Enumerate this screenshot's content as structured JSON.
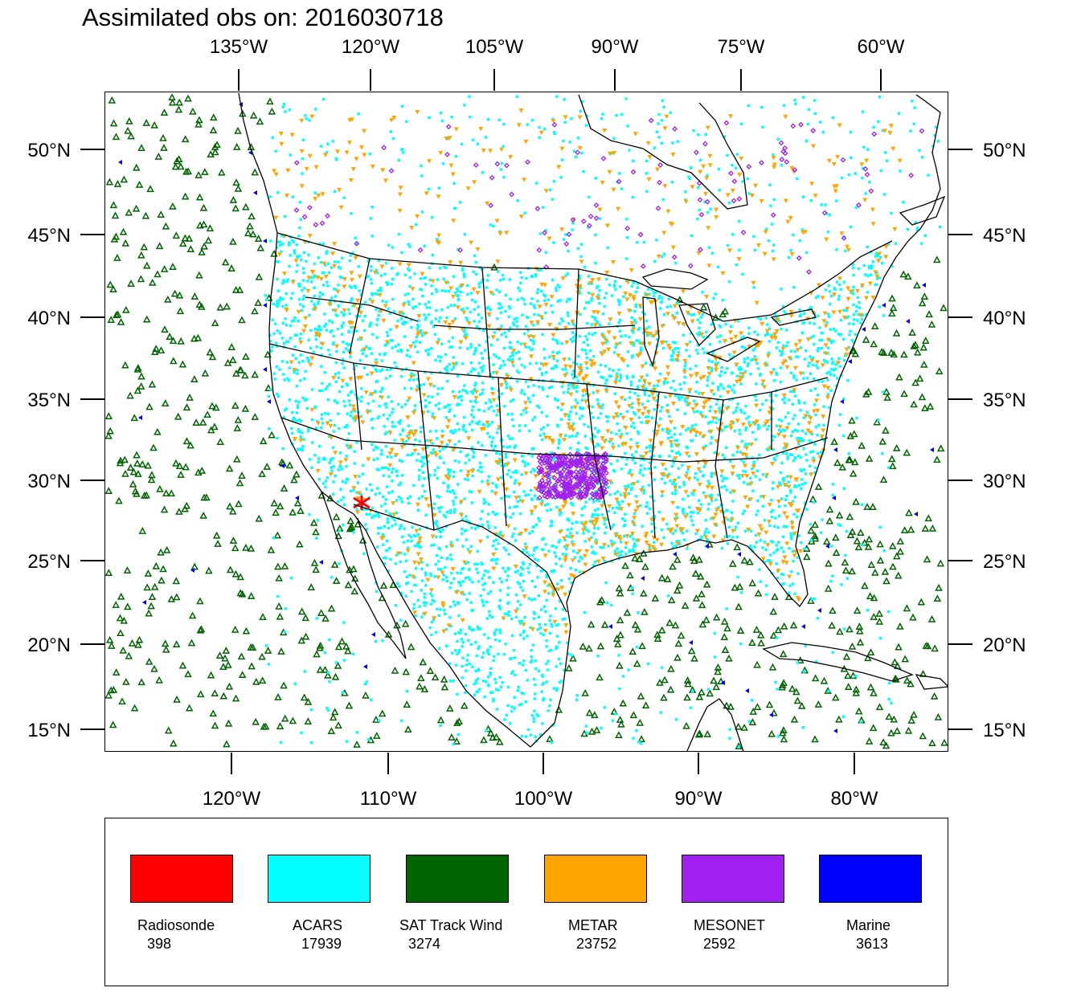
{
  "title": "Assimilated obs on: 2016030718",
  "map": {
    "top_lon_labels": [
      "135°W",
      "120°W",
      "105°W",
      "90°W",
      "75°W",
      "60°W"
    ],
    "bottom_lon_labels": [
      "120°W",
      "110°W",
      "100°W",
      "90°W",
      "80°W"
    ],
    "left_lat_labels": [
      "50°N",
      "45°N",
      "40°N",
      "35°N",
      "30°N",
      "25°N",
      "20°N",
      "15°N"
    ],
    "right_lat_labels": [
      "50°N",
      "45°N",
      "40°N",
      "35°N",
      "30°N",
      "25°N",
      "20°N",
      "15°N"
    ]
  },
  "legend": [
    {
      "name": "Radiosonde",
      "count": "398",
      "color": "#ff0000"
    },
    {
      "name": "ACARS",
      "count": "17939",
      "color": "#00ffff"
    },
    {
      "name": "SAT Track Wind",
      "count": "3274",
      "color": "#006400"
    },
    {
      "name": "METAR",
      "count": "23752",
      "color": "#ffa500"
    },
    {
      "name": "MESONET",
      "count": "2592",
      "color": "#a020f0"
    },
    {
      "name": "Marine",
      "count": "3613",
      "color": "#0000ff"
    }
  ],
  "colors": {
    "radiosonde": "#ff0000",
    "acars": "#00ffff",
    "sat": "#006400",
    "metar": "#ffa500",
    "mesonet": "#a020f0",
    "marine": "#0000ff"
  }
}
